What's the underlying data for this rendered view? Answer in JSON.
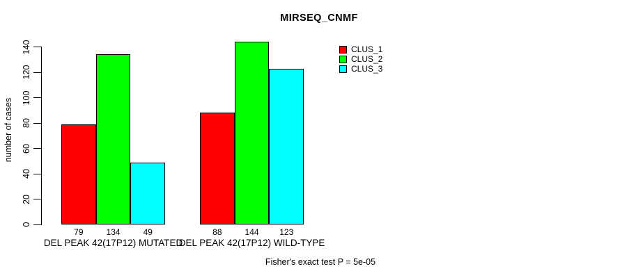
{
  "chart_data": {
    "type": "bar",
    "title": "MIRSEQ_CNMF",
    "ylabel": "number of cases",
    "xlabel": "",
    "ylim": [
      0,
      140
    ],
    "yticks": [
      0,
      20,
      40,
      60,
      80,
      100,
      120,
      140
    ],
    "grid": false,
    "legend_position": "top-right-inside",
    "categories": [
      "DEL PEAK 42(17P12) MUTATED",
      "DEL PEAK 42(17P12) WILD-TYPE"
    ],
    "series": [
      {
        "name": "CLUS_1",
        "color": "#ff0000",
        "values": [
          79,
          88
        ]
      },
      {
        "name": "CLUS_2",
        "color": "#00ff00",
        "values": [
          134,
          144
        ]
      },
      {
        "name": "CLUS_3",
        "color": "#00ffff",
        "values": [
          49,
          123
        ]
      }
    ],
    "bar_value_labels": [
      [
        79,
        134,
        49
      ],
      [
        88,
        144,
        123
      ]
    ],
    "annotation": "Fisher's exact test P = 5e-05"
  },
  "legend": {
    "items": [
      {
        "label": "CLUS_1",
        "color": "#ff0000"
      },
      {
        "label": "CLUS_2",
        "color": "#00ff00"
      },
      {
        "label": "CLUS_3",
        "color": "#00ffff"
      }
    ]
  },
  "colors": {
    "axis": "#000000",
    "background": "#ffffff",
    "text": "#000000"
  }
}
